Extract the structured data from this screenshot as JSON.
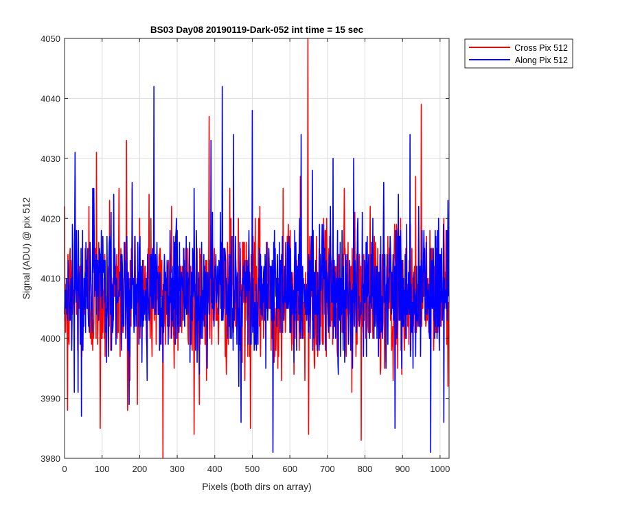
{
  "chart_data": {
    "type": "line",
    "title": "BS03 Day08 20190119-Dark-052 int time = 15 sec",
    "xlabel": "Pixels (both dirs on array)",
    "ylabel": "Signal (ADU) @ pix 512",
    "xlim": [
      0,
      1024
    ],
    "ylim": [
      3980,
      4050
    ],
    "xticks": [
      0,
      100,
      200,
      300,
      400,
      500,
      600,
      700,
      800,
      900,
      1000
    ],
    "yticks": [
      3980,
      3990,
      4000,
      4010,
      4020,
      4030,
      4040,
      4050
    ],
    "grid": true,
    "legend_position": "top-right-outside",
    "series": [
      {
        "name": "Cross Pix 512",
        "color": "#ff0000",
        "mean": 4007,
        "std": 5.5,
        "points": 1024,
        "peaks": [
          [
            8,
            3988
          ],
          [
            28,
            4027
          ],
          [
            65,
            4022
          ],
          [
            85,
            4031
          ],
          [
            95,
            3985
          ],
          [
            120,
            4023
          ],
          [
            145,
            4025
          ],
          [
            165,
            4033
          ],
          [
            168,
            3988
          ],
          [
            180,
            4025
          ],
          [
            200,
            4020
          ],
          [
            225,
            4024
          ],
          [
            262,
            3980
          ],
          [
            285,
            4022
          ],
          [
            345,
            3984
          ],
          [
            385,
            4037
          ],
          [
            440,
            4025
          ],
          [
            495,
            3985
          ],
          [
            520,
            4022
          ],
          [
            582,
            4025
          ],
          [
            628,
            4027
          ],
          [
            640,
            3993
          ],
          [
            648,
            4050
          ],
          [
            650,
            3984
          ],
          [
            690,
            4020
          ],
          [
            745,
            4025
          ],
          [
            790,
            3983
          ],
          [
            850,
            4022
          ],
          [
            895,
            4020
          ],
          [
            935,
            4027
          ],
          [
            950,
            4039
          ],
          [
            1010,
            4020
          ]
        ]
      },
      {
        "name": "Along Pix 512",
        "color": "#0000ff",
        "mean": 4008,
        "std": 5.5,
        "points": 1024,
        "peaks": [
          [
            10,
            4013
          ],
          [
            28,
            4031
          ],
          [
            45,
            3987
          ],
          [
            75,
            4025
          ],
          [
            180,
            4026
          ],
          [
            238,
            4042
          ],
          [
            262,
            3996
          ],
          [
            300,
            4018
          ],
          [
            345,
            4025
          ],
          [
            390,
            4033
          ],
          [
            420,
            4042
          ],
          [
            450,
            4034
          ],
          [
            470,
            3986
          ],
          [
            500,
            4038
          ],
          [
            555,
            3981
          ],
          [
            630,
            4034
          ],
          [
            660,
            4028
          ],
          [
            715,
            4030
          ],
          [
            770,
            4030
          ],
          [
            850,
            4026
          ],
          [
            880,
            3985
          ],
          [
            920,
            4034
          ],
          [
            975,
            3981
          ],
          [
            1010,
            3986
          ]
        ]
      }
    ]
  }
}
